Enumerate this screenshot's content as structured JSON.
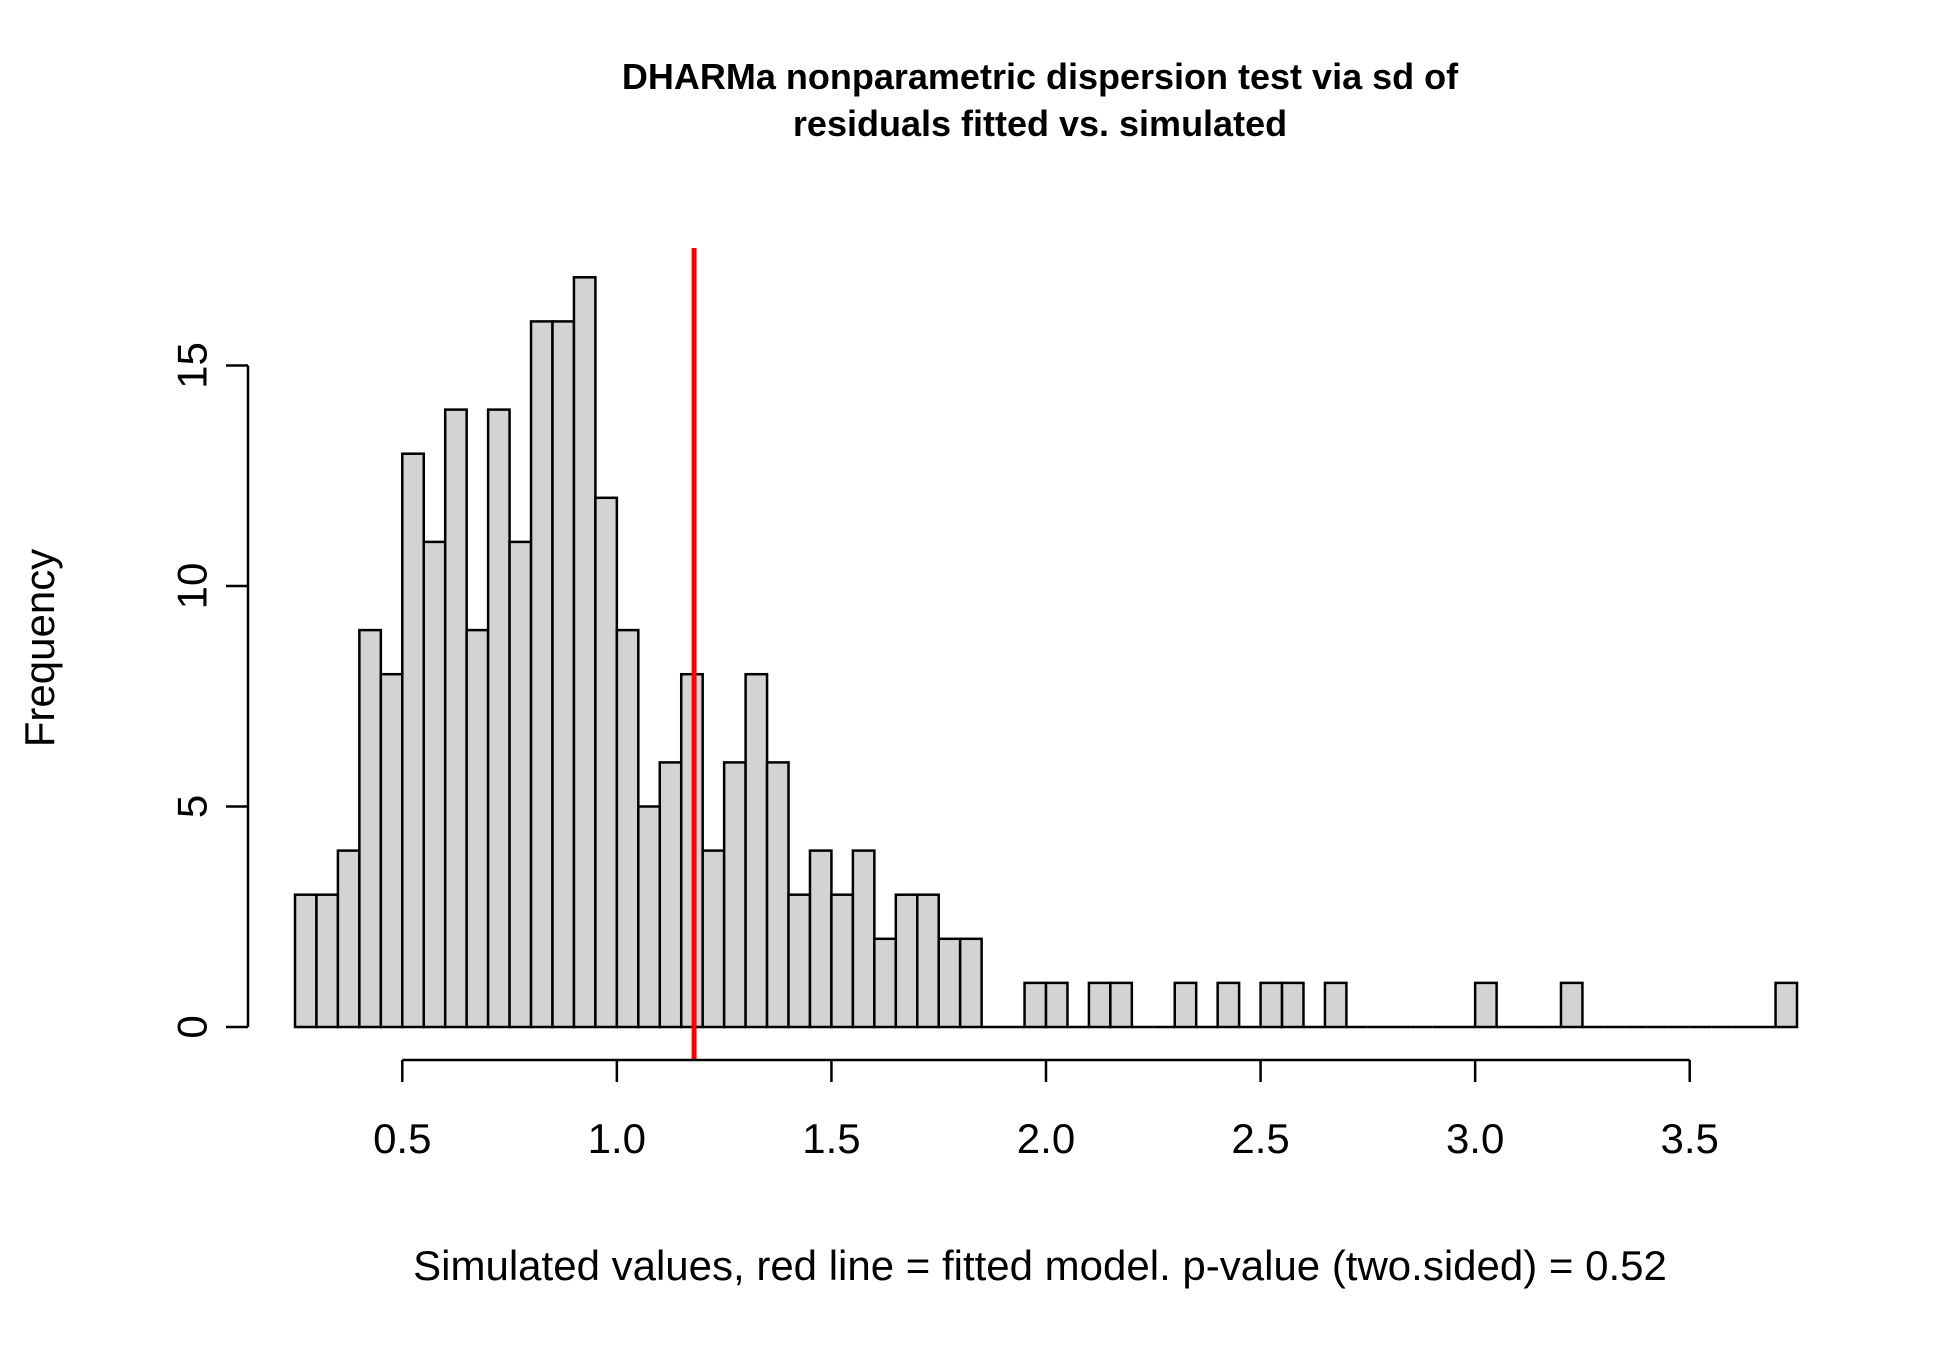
{
  "chart_data": {
    "type": "bar",
    "title_lines": [
      "DHARMa nonparametric dispersion test via sd of",
      "residuals fitted vs. simulated"
    ],
    "xlabel": "Simulated values, red line = fitted model. p-value (two.sided) = 0.52",
    "ylabel": "Frequency",
    "bin_width": 0.05,
    "bin_start": 0.25,
    "counts": [
      3,
      3,
      4,
      9,
      8,
      13,
      11,
      14,
      9,
      14,
      11,
      16,
      16,
      17,
      12,
      9,
      5,
      6,
      8,
      4,
      6,
      8,
      6,
      3,
      4,
      3,
      4,
      2,
      3,
      3,
      2,
      2,
      0,
      0,
      1,
      1,
      0,
      1,
      1,
      0,
      0,
      1,
      0,
      1,
      0,
      1,
      1,
      0,
      1,
      0,
      0,
      0,
      0,
      0,
      0,
      1,
      0,
      0,
      0,
      1,
      0,
      0,
      0,
      0,
      0,
      0,
      0,
      0,
      0,
      1
    ],
    "xlim": [
      0.25,
      3.75
    ],
    "ylim": [
      0,
      17
    ],
    "x_ticks": [
      0.5,
      1.0,
      1.5,
      2.0,
      2.5,
      3.0,
      3.5
    ],
    "x_tick_labels": [
      "0.5",
      "1.0",
      "1.5",
      "2.0",
      "2.5",
      "3.0",
      "3.5"
    ],
    "y_ticks": [
      0,
      5,
      10,
      15
    ],
    "y_tick_labels": [
      "0",
      "5",
      "10",
      "15"
    ],
    "fitted_value": 1.18,
    "fitted_line_color": "#ff0000",
    "bar_color": "#d3d3d3"
  }
}
